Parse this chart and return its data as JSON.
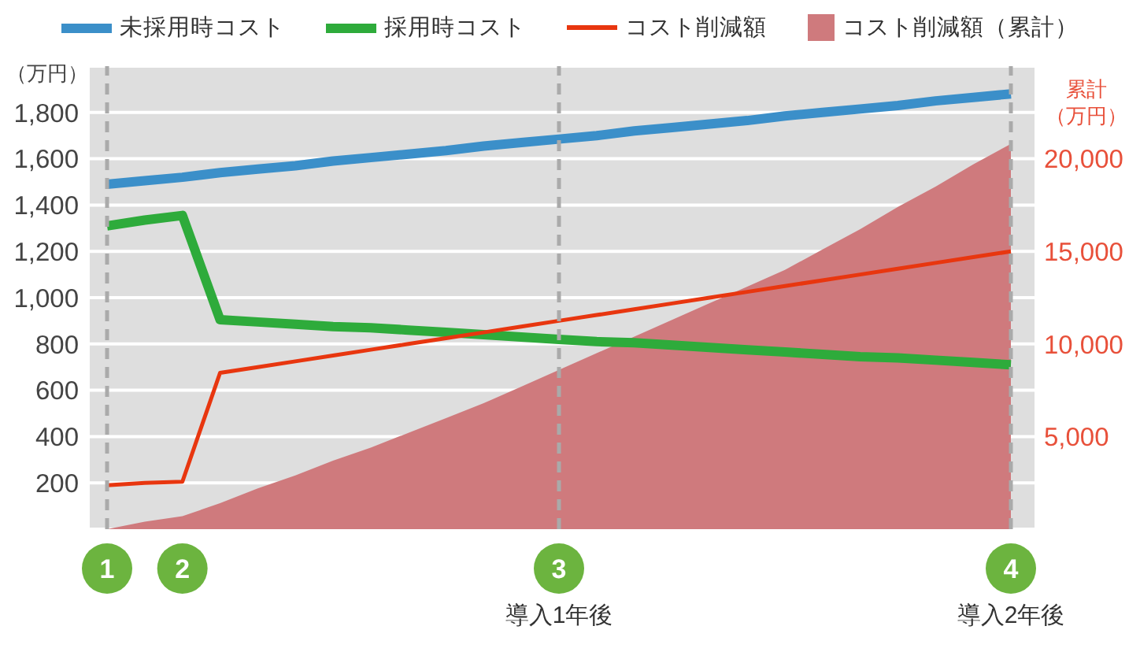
{
  "chart_data": {
    "type": "line",
    "ylabel": "（万円）",
    "y2label": "累計（万円）",
    "categories": [
      "1",
      null,
      "2",
      null,
      null,
      null,
      null,
      null,
      null,
      null,
      null,
      null,
      "導入1年後",
      null,
      null,
      null,
      null,
      null,
      null,
      null,
      null,
      null,
      null,
      null,
      "導入2年後"
    ],
    "ylim": [
      0,
      2000
    ],
    "yticks": [
      200,
      400,
      600,
      800,
      {
        "value": 1000,
        "label": "1,000"
      },
      {
        "value": 1200,
        "label": "1,200"
      },
      {
        "value": 1400,
        "label": "1,400"
      },
      {
        "value": 1600,
        "label": "1,600"
      },
      {
        "value": 1800,
        "label": "1,800"
      }
    ],
    "y2lim": [
      0,
      25000
    ],
    "y2ticks": [
      {
        "value": 5000,
        "label": "5,000"
      },
      {
        "value": 10000,
        "label": "10,000"
      },
      {
        "value": 15000,
        "label": "15,000"
      },
      {
        "value": 20000,
        "label": "20,000"
      }
    ],
    "series": [
      {
        "name": "未採用時コスト",
        "color": "#3b8fc9",
        "values": [
          1490,
          1505,
          1520,
          1540,
          1555,
          1570,
          1590,
          1605,
          1620,
          1635,
          1655,
          1670,
          1685,
          1700,
          1720,
          1735,
          1750,
          1765,
          1785,
          1800,
          1815,
          1830,
          1850,
          1865,
          1880
        ]
      },
      {
        "name": "採用時コスト",
        "color": "#2eab3b",
        "values": [
          1310,
          1335,
          1355,
          905,
          895,
          885,
          875,
          870,
          860,
          850,
          840,
          830,
          820,
          810,
          805,
          795,
          785,
          775,
          765,
          755,
          745,
          740,
          730,
          720,
          710
        ]
      },
      {
        "name": "コスト削減額",
        "color": "#e8360f",
        "values": [
          190,
          200,
          205,
          675,
          700,
          725,
          750,
          775,
          800,
          825,
          850,
          875,
          900,
          925,
          950,
          975,
          1000,
          1025,
          1050,
          1075,
          1100,
          1125,
          1150,
          1175,
          1200
        ]
      },
      {
        "name": "コスト削減額（累計）",
        "type": "area",
        "axis": "y2",
        "color": "#cf7a7d",
        "values": [
          0,
          400,
          700,
          1400,
          2200,
          2900,
          3700,
          4400,
          5200,
          6000,
          6800,
          7700,
          8600,
          9500,
          10400,
          11300,
          12200,
          13100,
          14000,
          15100,
          16200,
          17400,
          18500,
          19700,
          20800
        ]
      }
    ],
    "ref_lines": [
      {
        "axis": "x",
        "value": "1",
        "color": "#aaaaaa",
        "line_style": "dashed"
      },
      {
        "axis": "x",
        "value": "導入1年後",
        "label": "3",
        "color": "#aaaaaa",
        "line_style": "dashed"
      },
      {
        "axis": "x",
        "value": "導入2年後",
        "label": "4",
        "color": "#aaaaaa",
        "line_style": "dashed"
      }
    ],
    "grid": "y",
    "legend": "top",
    "marker": "none"
  }
}
